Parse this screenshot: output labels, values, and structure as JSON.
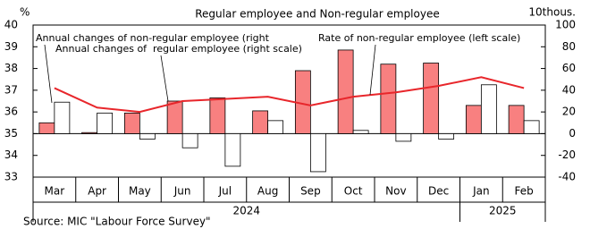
{
  "chart_data": {
    "type": "bar",
    "title": "Regular employee and Non-regular employee",
    "y_unit": "%",
    "y2_unit": "10thous.",
    "categories": [
      "Mar",
      "Apr",
      "May",
      "Jun",
      "Jul",
      "Aug",
      "Sep",
      "Oct",
      "Nov",
      "Dec",
      "Jan",
      "Feb"
    ],
    "years": [
      "2024",
      "2025"
    ],
    "series": [
      {
        "name": "Annual changes of  regular employee (right scale)",
        "type": "bar",
        "axis": "y2",
        "color": "#f88080",
        "values": [
          10,
          1,
          19,
          30,
          33,
          21,
          58,
          77,
          64,
          65,
          26,
          26
        ]
      },
      {
        "name": "Annual changes of non-regular employee (right",
        "type": "bar",
        "axis": "y2",
        "color": "#ffffff",
        "values": [
          29,
          19,
          -5,
          -13,
          -30,
          12,
          -35,
          3,
          -7,
          -5,
          45,
          12
        ]
      },
      {
        "name": "Rate of non-regular employee (left scale)",
        "type": "line",
        "axis": "y",
        "color": "#e8262b",
        "values": [
          37.1,
          36.2,
          36.0,
          36.5,
          36.6,
          36.7,
          36.3,
          36.7,
          36.9,
          37.2,
          37.6,
          37.1
        ]
      }
    ],
    "ylim": [
      33,
      40
    ],
    "yticks": [
      33,
      34,
      35,
      36,
      37,
      38,
      39,
      40
    ],
    "y2lim": [
      -40,
      100
    ],
    "y2ticks": [
      -40,
      -20,
      0,
      20,
      40,
      60,
      80,
      100
    ],
    "source": "Source: MIC \"Labour Force Survey\""
  }
}
